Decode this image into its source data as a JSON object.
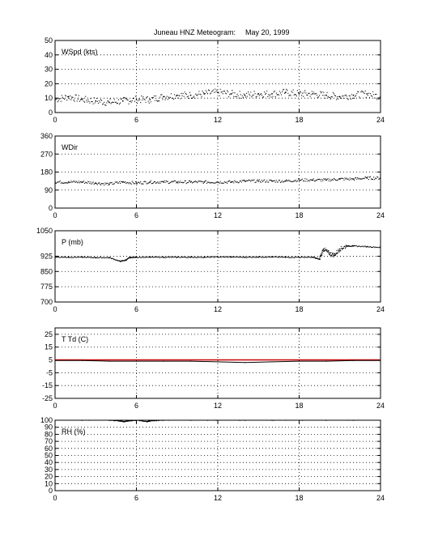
{
  "figure": {
    "title_left": "Juneau HNZ Meteogram:",
    "title_right": "May 20, 1999"
  },
  "chart_data": [
    {
      "type": "scatter",
      "label": "WSpd (kts)",
      "xlim": [
        0,
        24
      ],
      "xticks": [
        "0",
        "6",
        "12",
        "18",
        "24"
      ],
      "ylim": [
        0,
        50
      ],
      "yticks": [
        "0",
        "10",
        "20",
        "30",
        "40",
        "50"
      ],
      "grid": true,
      "series": [
        {
          "color": "#000000",
          "x": [
            0,
            1,
            2,
            3,
            4,
            5,
            6,
            7,
            8,
            9,
            10,
            11,
            12,
            13,
            14,
            15,
            16,
            17,
            18,
            19,
            20,
            21,
            22,
            23,
            24
          ],
          "y": [
            9,
            11,
            9,
            8,
            7,
            8,
            9,
            9,
            11,
            12,
            12,
            13,
            14,
            13,
            12,
            13,
            13,
            14,
            13,
            13,
            12,
            11,
            12,
            13,
            11
          ]
        }
      ]
    },
    {
      "type": "scatter",
      "label": "WDir",
      "xlim": [
        0,
        24
      ],
      "xticks": [
        "0",
        "6",
        "12",
        "18",
        "24"
      ],
      "ylim": [
        0,
        360
      ],
      "yticks": [
        "0",
        "90",
        "180",
        "270",
        "360"
      ],
      "grid": true,
      "series": [
        {
          "color": "#000000",
          "x": [
            0,
            1,
            2,
            3,
            4,
            5,
            6,
            7,
            8,
            9,
            10,
            11,
            12,
            13,
            14,
            15,
            16,
            17,
            18,
            19,
            20,
            21,
            22,
            23,
            24
          ],
          "y": [
            130,
            130,
            130,
            125,
            120,
            130,
            125,
            130,
            130,
            130,
            130,
            130,
            130,
            130,
            135,
            135,
            135,
            135,
            140,
            140,
            140,
            145,
            145,
            150,
            150
          ]
        }
      ]
    },
    {
      "type": "scatter",
      "label": "P (mb)",
      "xlim": [
        0,
        24
      ],
      "xticks": [
        "0",
        "6",
        "12",
        "18",
        "24"
      ],
      "ylim": [
        700,
        1050
      ],
      "yticks": [
        "700",
        "775",
        "850",
        "925",
        "1050"
      ],
      "grid": true,
      "series": [
        {
          "color": "#000000",
          "x": [
            0,
            1,
            2,
            3,
            4,
            4.8,
            5.2,
            5.5,
            6,
            7,
            8,
            9,
            10,
            11,
            12,
            13,
            14,
            15,
            16,
            17,
            18,
            19,
            19.5,
            19.8,
            20.2,
            20.6,
            21,
            21.5,
            22,
            23,
            24
          ],
          "y": [
            920,
            920,
            920,
            918,
            918,
            900,
            905,
            918,
            920,
            920,
            920,
            920,
            920,
            920,
            921,
            921,
            920,
            921,
            921,
            920,
            920,
            920,
            910,
            960,
            940,
            930,
            960,
            975,
            975,
            972,
            968
          ]
        }
      ]
    },
    {
      "type": "line",
      "label": "T Td (C)",
      "xlim": [
        0,
        24
      ],
      "xticks": [
        "0",
        "6",
        "12",
        "18",
        "24"
      ],
      "ylim": [
        -25,
        30
      ],
      "yticks": [
        "-25",
        "-15",
        "-5",
        "5",
        "15",
        "25"
      ],
      "grid": true,
      "series": [
        {
          "color": "#cc0000",
          "x": [
            0,
            2,
            4,
            6,
            8,
            10,
            12,
            14,
            16,
            18,
            20,
            22,
            24
          ],
          "y": [
            5,
            5,
            5,
            5,
            5,
            5,
            5,
            5,
            5,
            5,
            5,
            5,
            5
          ]
        },
        {
          "color": "#000000",
          "x": [
            0,
            2,
            4,
            6,
            8,
            10,
            12,
            14,
            16,
            18,
            20,
            22,
            24
          ],
          "y": [
            4.5,
            4.5,
            4,
            4,
            4,
            4,
            3.5,
            3,
            3.5,
            4,
            4,
            4.5,
            4.5
          ]
        }
      ]
    },
    {
      "type": "scatter",
      "label": "RH (%)",
      "xlim": [
        0,
        24
      ],
      "xticks": [
        "0",
        "6",
        "12",
        "18",
        "24"
      ],
      "ylim": [
        0,
        100
      ],
      "yticks": [
        "0",
        "10",
        "20",
        "30",
        "40",
        "50",
        "60",
        "70",
        "80",
        "90",
        "100"
      ],
      "grid": true,
      "series": [
        {
          "color": "#000000",
          "x": [
            0,
            2,
            4,
            4.8,
            5.1,
            5.4,
            6,
            6.8,
            7,
            8,
            10,
            12,
            14,
            16,
            18,
            20,
            22,
            24
          ],
          "y": [
            100,
            100,
            100,
            99,
            98,
            99,
            100,
            98,
            99,
            100,
            100,
            100,
            100,
            100,
            100,
            100,
            100,
            100
          ]
        }
      ]
    }
  ]
}
